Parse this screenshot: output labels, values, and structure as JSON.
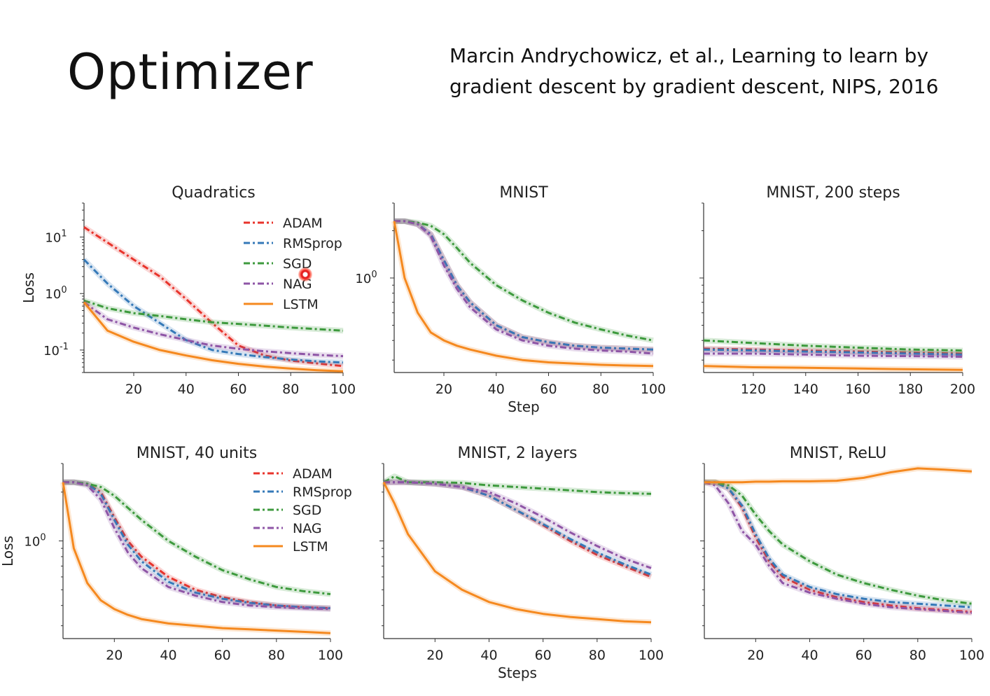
{
  "slide": {
    "title": "Optimizer",
    "citation_line1": "Marcin Andrychowicz, et al., Learning to learn by",
    "citation_line2": "gradient descent by gradient descent, NIPS, 2016"
  },
  "colors": {
    "ADAM": "#e8332b",
    "RMSprop": "#3579b8",
    "SGD": "#3d9a3d",
    "NAG": "#8e55a6",
    "LSTM": "#f5891f"
  },
  "chart_data": [
    {
      "type": "line",
      "title": "Quadratics",
      "xlabel": "",
      "ylabel": "Loss",
      "yscale": "log",
      "xlim": [
        1,
        100
      ],
      "ylim": [
        0.04,
        40
      ],
      "xticks": [
        "20",
        "40",
        "60",
        "80",
        "100"
      ],
      "yticks": [
        {
          "label": "10",
          "exp": "1",
          "value": 10
        },
        {
          "label": "10",
          "exp": "0",
          "value": 1
        },
        {
          "label": "10",
          "exp": "-1",
          "value": 0.1
        }
      ],
      "legend": "top-right",
      "x": [
        1,
        10,
        20,
        30,
        40,
        50,
        60,
        70,
        80,
        90,
        100
      ],
      "series": [
        {
          "name": "ADAM",
          "style": "dashed",
          "values": [
            15,
            8,
            4,
            2,
            0.8,
            0.3,
            0.12,
            0.08,
            0.065,
            0.058,
            0.052
          ]
        },
        {
          "name": "RMSprop",
          "style": "dashed",
          "values": [
            4,
            1.5,
            0.6,
            0.3,
            0.15,
            0.1,
            0.085,
            0.075,
            0.068,
            0.063,
            0.06
          ]
        },
        {
          "name": "SGD",
          "style": "dashed",
          "values": [
            0.75,
            0.55,
            0.45,
            0.4,
            0.35,
            0.31,
            0.29,
            0.27,
            0.25,
            0.235,
            0.22
          ]
        },
        {
          "name": "NAG",
          "style": "dashed",
          "values": [
            0.7,
            0.35,
            0.25,
            0.19,
            0.15,
            0.12,
            0.105,
            0.095,
            0.088,
            0.082,
            0.078
          ]
        },
        {
          "name": "LSTM",
          "style": "solid",
          "values": [
            0.7,
            0.22,
            0.14,
            0.1,
            0.08,
            0.066,
            0.057,
            0.051,
            0.047,
            0.044,
            0.042
          ]
        }
      ]
    },
    {
      "type": "line",
      "title": "MNIST",
      "xlabel": "Step",
      "ylabel": "",
      "yscale": "log",
      "xlim": [
        1,
        100
      ],
      "ylim": [
        0.25,
        3
      ],
      "xticks": [
        "20",
        "40",
        "60",
        "80",
        "100"
      ],
      "yticks": [
        {
          "label": "10",
          "exp": "0",
          "value": 1
        }
      ],
      "x": [
        1,
        5,
        10,
        15,
        20,
        25,
        30,
        40,
        50,
        60,
        70,
        80,
        90,
        100
      ],
      "series": [
        {
          "name": "ADAM",
          "style": "dashed",
          "values": [
            2.3,
            2.3,
            2.2,
            1.9,
            1.3,
            0.9,
            0.7,
            0.5,
            0.42,
            0.39,
            0.37,
            0.36,
            0.355,
            0.35
          ]
        },
        {
          "name": "RMSprop",
          "style": "dashed",
          "values": [
            2.3,
            2.3,
            2.2,
            1.9,
            1.3,
            0.9,
            0.7,
            0.5,
            0.42,
            0.39,
            0.37,
            0.36,
            0.355,
            0.35
          ]
        },
        {
          "name": "SGD",
          "style": "dashed",
          "values": [
            2.3,
            2.3,
            2.25,
            2.15,
            1.9,
            1.55,
            1.25,
            0.9,
            0.72,
            0.6,
            0.52,
            0.47,
            0.43,
            0.4
          ]
        },
        {
          "name": "NAG",
          "style": "dashed",
          "values": [
            2.3,
            2.3,
            2.2,
            1.85,
            1.2,
            0.85,
            0.65,
            0.47,
            0.4,
            0.37,
            0.355,
            0.345,
            0.34,
            0.33
          ]
        },
        {
          "name": "LSTM",
          "style": "solid",
          "values": [
            2.3,
            1.0,
            0.6,
            0.45,
            0.4,
            0.37,
            0.35,
            0.32,
            0.3,
            0.29,
            0.285,
            0.28,
            0.277,
            0.275
          ]
        }
      ]
    },
    {
      "type": "line",
      "title": "MNIST, 200 steps",
      "xlabel": "",
      "ylabel": "",
      "yscale": "log",
      "xlim": [
        101,
        200
      ],
      "ylim": [
        0.25,
        3
      ],
      "xticks": [
        "120",
        "140",
        "160",
        "180",
        "200"
      ],
      "yticks": [],
      "x": [
        101,
        120,
        140,
        160,
        180,
        200
      ],
      "series": [
        {
          "name": "ADAM",
          "style": "dashed",
          "values": [
            0.355,
            0.35,
            0.345,
            0.34,
            0.335,
            0.33
          ]
        },
        {
          "name": "RMSprop",
          "style": "dashed",
          "values": [
            0.35,
            0.345,
            0.34,
            0.335,
            0.33,
            0.325
          ]
        },
        {
          "name": "SGD",
          "style": "dashed",
          "values": [
            0.4,
            0.385,
            0.37,
            0.36,
            0.35,
            0.345
          ]
        },
        {
          "name": "NAG",
          "style": "dashed",
          "values": [
            0.33,
            0.33,
            0.325,
            0.32,
            0.318,
            0.315
          ]
        },
        {
          "name": "LSTM",
          "style": "solid",
          "values": [
            0.275,
            0.27,
            0.268,
            0.265,
            0.262,
            0.26
          ]
        }
      ]
    },
    {
      "type": "line",
      "title": "MNIST, 40 units",
      "xlabel": "",
      "ylabel": "Loss",
      "yscale": "log",
      "xlim": [
        1,
        100
      ],
      "ylim": [
        0.25,
        3
      ],
      "xticks": [
        "20",
        "40",
        "60",
        "80",
        "100"
      ],
      "yticks": [
        {
          "label": "10",
          "exp": "0",
          "value": 1
        }
      ],
      "legend": "top-right",
      "x": [
        1,
        5,
        10,
        15,
        20,
        25,
        30,
        40,
        50,
        60,
        70,
        80,
        90,
        100
      ],
      "series": [
        {
          "name": "ADAM",
          "style": "dashed",
          "values": [
            2.3,
            2.3,
            2.25,
            2.0,
            1.4,
            1.0,
            0.8,
            0.6,
            0.5,
            0.45,
            0.42,
            0.4,
            0.39,
            0.385
          ]
        },
        {
          "name": "RMSprop",
          "style": "dashed",
          "values": [
            2.3,
            2.3,
            2.25,
            1.95,
            1.35,
            0.95,
            0.75,
            0.56,
            0.48,
            0.44,
            0.415,
            0.4,
            0.39,
            0.385
          ]
        },
        {
          "name": "SGD",
          "style": "dashed",
          "values": [
            2.3,
            2.3,
            2.25,
            2.15,
            1.9,
            1.6,
            1.35,
            1.0,
            0.8,
            0.66,
            0.58,
            0.52,
            0.49,
            0.47
          ]
        },
        {
          "name": "NAG",
          "style": "dashed",
          "values": [
            2.3,
            2.3,
            2.2,
            1.8,
            1.2,
            0.85,
            0.68,
            0.52,
            0.46,
            0.42,
            0.4,
            0.39,
            0.385,
            0.38
          ]
        },
        {
          "name": "LSTM",
          "style": "solid",
          "values": [
            2.3,
            0.9,
            0.55,
            0.43,
            0.38,
            0.35,
            0.33,
            0.31,
            0.3,
            0.29,
            0.285,
            0.28,
            0.275,
            0.27
          ]
        }
      ]
    },
    {
      "type": "line",
      "title": "MNIST, 2 layers",
      "xlabel": "Steps",
      "ylabel": "",
      "yscale": "log",
      "xlim": [
        1,
        100
      ],
      "ylim": [
        0.25,
        3
      ],
      "xticks": [
        "20",
        "40",
        "60",
        "80",
        "100"
      ],
      "yticks": [],
      "x": [
        1,
        5,
        10,
        20,
        30,
        40,
        50,
        60,
        70,
        80,
        90,
        100
      ],
      "series": [
        {
          "name": "ADAM",
          "style": "dashed",
          "values": [
            2.3,
            2.3,
            2.3,
            2.25,
            2.15,
            1.9,
            1.55,
            1.25,
            1.0,
            0.82,
            0.7,
            0.6
          ]
        },
        {
          "name": "RMSprop",
          "style": "dashed",
          "values": [
            2.3,
            2.3,
            2.3,
            2.25,
            2.15,
            1.9,
            1.55,
            1.27,
            1.03,
            0.85,
            0.72,
            0.62
          ]
        },
        {
          "name": "SGD",
          "style": "dashed",
          "values": [
            2.3,
            2.5,
            2.3,
            2.3,
            2.28,
            2.2,
            2.15,
            2.1,
            2.05,
            2.0,
            1.97,
            1.95
          ]
        },
        {
          "name": "NAG",
          "style": "dashed",
          "values": [
            2.3,
            2.3,
            2.3,
            2.25,
            2.15,
            2.0,
            1.7,
            1.4,
            1.13,
            0.93,
            0.78,
            0.68
          ]
        },
        {
          "name": "LSTM",
          "style": "solid",
          "values": [
            2.3,
            1.7,
            1.1,
            0.65,
            0.5,
            0.42,
            0.38,
            0.355,
            0.34,
            0.33,
            0.32,
            0.315
          ]
        }
      ]
    },
    {
      "type": "line",
      "title": "MNIST, ReLU",
      "xlabel": "",
      "ylabel": "",
      "yscale": "log",
      "xlim": [
        1,
        100
      ],
      "ylim": [
        0.25,
        3
      ],
      "xticks": [
        "20",
        "40",
        "60",
        "80",
        "100"
      ],
      "yticks": [],
      "x": [
        1,
        5,
        10,
        15,
        20,
        25,
        30,
        40,
        50,
        60,
        70,
        80,
        90,
        100
      ],
      "series": [
        {
          "name": "ADAM",
          "style": "dashed",
          "values": [
            2.3,
            2.3,
            2.1,
            1.6,
            1.05,
            0.75,
            0.6,
            0.5,
            0.45,
            0.42,
            0.4,
            0.385,
            0.375,
            0.365
          ]
        },
        {
          "name": "RMSprop",
          "style": "dashed",
          "values": [
            2.3,
            2.3,
            2.1,
            1.65,
            1.1,
            0.78,
            0.62,
            0.52,
            0.47,
            0.44,
            0.42,
            0.41,
            0.4,
            0.39
          ]
        },
        {
          "name": "SGD",
          "style": "dashed",
          "values": [
            2.3,
            2.3,
            2.2,
            1.9,
            1.45,
            1.15,
            0.95,
            0.75,
            0.62,
            0.55,
            0.5,
            0.46,
            0.43,
            0.41
          ]
        },
        {
          "name": "NAG",
          "style": "dashed",
          "values": [
            2.3,
            2.2,
            1.7,
            1.15,
            0.95,
            0.7,
            0.55,
            0.48,
            0.44,
            0.41,
            0.39,
            0.38,
            0.37,
            0.36
          ]
        },
        {
          "name": "LSTM",
          "style": "solid",
          "values": [
            2.3,
            2.3,
            2.3,
            2.3,
            2.32,
            2.32,
            2.33,
            2.33,
            2.35,
            2.45,
            2.65,
            2.8,
            2.75,
            2.68
          ]
        }
      ]
    }
  ]
}
